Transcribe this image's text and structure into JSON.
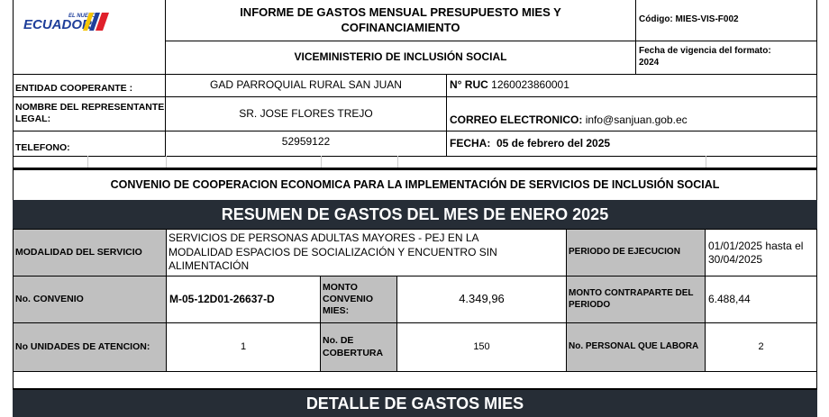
{
  "header": {
    "logo_text": "ECUADOR",
    "logo_small": "EL NUEVO",
    "title": "INFORME DE GASTOS MENSUAL PRESUPUESTO MIES Y COFINANCIAMIENTO",
    "subtitle": "VICEMINISTERIO DE INCLUSIÓN SOCIAL",
    "code": "Código: MIES-VIS-F002",
    "validity_label": "Fecha de vigencia del formato:",
    "validity_year": "2024",
    "flag_colors": [
      "#f5c400",
      "#1f3f9a",
      "#e0202b"
    ]
  },
  "info": {
    "entity_label": "ENTIDAD COOPERANTE :",
    "entity_value": "GAD PARROQUIAL RURAL SAN JUAN",
    "ruc_label": "N° RUC",
    "ruc_value": "1260023860001",
    "rep_label": "NOMBRE DEL REPRESENTANTE LEGAL:",
    "rep_value": "SR. JOSE FLORES TREJO",
    "email_label": "CORREO ELECTRONICO:",
    "email_value": "info@sanjuan.gob.ec",
    "phone_label": "TELEFONO:",
    "phone_value": "52959122",
    "date_label": "FECHA:",
    "date_value": "05 de febrero del 2025"
  },
  "convenio_title": "CONVENIO DE COOPERACION ECONOMICA PARA LA IMPLEMENTACIÓN DE SERVICIOS DE INCLUSIÓN SOCIAL",
  "summary": {
    "title": "RESUMEN DE GASTOS  DEL MES DE ENERO 2025",
    "modality_label": "MODALIDAD DEL SERVICIO",
    "modality_value": "SERVICIOS DE PERSONAS ADULTAS MAYORES - PEJ EN LA MODALIDAD ESPACIOS DE SOCIALIZACIÓN Y ENCUENTRO SIN ALIMENTACIÓN",
    "period_label": "PERIODO DE EJECUCION",
    "period_value": "01/01/2025 hasta el 30/04/2025",
    "convenio_label": "No. CONVENIO",
    "convenio_value": "M-05-12D01-26637-D",
    "monto_mies_label": "MONTO CONVENIO MIES:",
    "monto_mies_value": "4.349,96",
    "contraparte_label": "MONTO CONTRAPARTE DEL PERIODO",
    "contraparte_value": "6.488,44",
    "units_label": "No UNIDADES DE ATENCION:",
    "units_value": "1",
    "coverage_label": "No. DE COBERTURA",
    "coverage_value": "150",
    "staff_label": "No. PERSONAL QUE LABORA",
    "staff_value": "2"
  },
  "detail_title": "DETALLE DE GASTOS  MIES"
}
